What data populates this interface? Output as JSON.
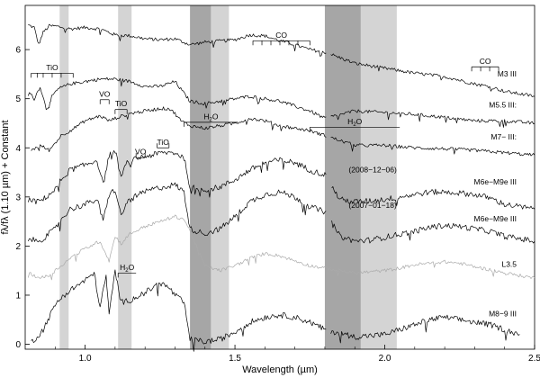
{
  "chart_data": {
    "type": "line",
    "xlabel": "Wavelength (µm)",
    "ylabel": "fλ/fλ (1.10 µm) + Constant",
    "xlim": [
      0.8,
      2.5
    ],
    "ylim": [
      -0.1,
      6.9
    ],
    "x_ticks": [
      {
        "value": 1.0,
        "label": "1.0"
      },
      {
        "value": 1.5,
        "label": "1.5"
      },
      {
        "value": 2.0,
        "label": "2.0"
      },
      {
        "value": 2.5,
        "label": "2.5"
      }
    ],
    "y_ticks": [
      {
        "value": 0,
        "label": "0"
      },
      {
        "value": 1,
        "label": "1"
      },
      {
        "value": 2,
        "label": "2"
      },
      {
        "value": 3,
        "label": "3"
      },
      {
        "value": 4,
        "label": "4"
      },
      {
        "value": 5,
        "label": "5"
      },
      {
        "value": 6,
        "label": "6"
      }
    ],
    "grid": false,
    "shaded_bands": [
      {
        "x0": 0.915,
        "x1": 0.945,
        "shade": "light"
      },
      {
        "x0": 1.11,
        "x1": 1.155,
        "shade": "light"
      },
      {
        "x0": 1.35,
        "x1": 1.42,
        "shade": "dark"
      },
      {
        "x0": 1.42,
        "x1": 1.48,
        "shade": "light"
      },
      {
        "x0": 1.8,
        "x1": 1.92,
        "shade": "dark"
      },
      {
        "x0": 1.92,
        "x1": 2.04,
        "shade": "light"
      }
    ],
    "series": [
      {
        "name": "M3 III",
        "color": "#000000",
        "offset": 5.55,
        "x": [
          0.81,
          0.83,
          0.845,
          0.86,
          0.88,
          0.9,
          0.95,
          1.0,
          1.05,
          1.1,
          1.15,
          1.2,
          1.25,
          1.3,
          1.35,
          1.4,
          1.5,
          1.55,
          1.6,
          1.65,
          1.7,
          1.75,
          1.8,
          1.9,
          2.0,
          2.1,
          2.2,
          2.3,
          2.35,
          2.4,
          2.45,
          2.5
        ],
        "y": [
          6.5,
          6.45,
          6.1,
          6.35,
          6.48,
          6.48,
          6.42,
          6.45,
          6.42,
          6.3,
          6.28,
          6.22,
          6.2,
          6.22,
          6.1,
          6.15,
          6.2,
          6.3,
          6.28,
          6.18,
          6.1,
          6.0,
          5.95,
          5.72,
          5.62,
          5.52,
          5.45,
          5.3,
          5.25,
          5.15,
          5.1,
          5.05
        ]
      },
      {
        "name": "M5.5 III:",
        "color": "#000000",
        "offset": 4.58,
        "x": [
          0.81,
          0.83,
          0.85,
          0.87,
          0.88,
          0.89,
          0.91,
          0.95,
          1.0,
          1.05,
          1.1,
          1.15,
          1.2,
          1.25,
          1.3,
          1.35,
          1.4,
          1.5,
          1.55,
          1.6,
          1.65,
          1.7,
          1.75,
          1.8,
          1.9,
          2.0,
          2.1,
          2.2,
          2.3,
          2.4,
          2.5
        ],
        "y": [
          5.15,
          5.0,
          5.25,
          4.8,
          4.85,
          5.05,
          5.2,
          5.3,
          5.35,
          5.4,
          5.4,
          5.35,
          5.25,
          5.25,
          5.35,
          4.95,
          4.9,
          5.0,
          5.05,
          5.0,
          4.95,
          4.85,
          4.75,
          4.6,
          4.75,
          4.72,
          4.68,
          4.62,
          4.55,
          4.55,
          4.5
        ]
      },
      {
        "name": "M7− III:",
        "color": "#000000",
        "offset": 3.55,
        "x": [
          0.82,
          0.85,
          0.88,
          0.9,
          0.92,
          0.95,
          1.0,
          1.05,
          1.08,
          1.1,
          1.15,
          1.2,
          1.25,
          1.28,
          1.3,
          1.32,
          1.35,
          1.4,
          1.5,
          1.55,
          1.6,
          1.65,
          1.7,
          1.75,
          1.8,
          1.9,
          2.0,
          2.1,
          2.2,
          2.3,
          2.4,
          2.5
        ],
        "y": [
          3.95,
          4.05,
          3.95,
          4.1,
          4.25,
          4.35,
          4.55,
          4.65,
          4.55,
          4.6,
          4.7,
          4.75,
          4.8,
          4.8,
          4.7,
          4.55,
          4.45,
          4.4,
          4.5,
          4.6,
          4.55,
          4.45,
          4.4,
          4.35,
          4.25,
          4.05,
          4.05,
          4.0,
          3.98,
          3.95,
          3.9,
          3.85
        ]
      },
      {
        "name": "M6e−M9e III (2008−12−06)",
        "color": "#000000",
        "offset": 2.48,
        "x": [
          0.81,
          0.84,
          0.86,
          0.88,
          0.9,
          0.92,
          0.95,
          1.0,
          1.04,
          1.06,
          1.08,
          1.1,
          1.12,
          1.14,
          1.18,
          1.22,
          1.26,
          1.3,
          1.33,
          1.35,
          1.4,
          1.45,
          1.5,
          1.55,
          1.6,
          1.65,
          1.7,
          1.75,
          1.8,
          1.85,
          1.9,
          1.95,
          2.0,
          2.1,
          2.15,
          2.2,
          2.25,
          2.3,
          2.35,
          2.4,
          2.5
        ],
        "y": [
          2.95,
          2.9,
          2.95,
          3.05,
          3.15,
          3.35,
          3.55,
          3.65,
          3.75,
          3.25,
          3.85,
          3.95,
          3.4,
          3.7,
          3.8,
          3.85,
          3.9,
          3.9,
          3.8,
          3.2,
          3.15,
          3.2,
          3.35,
          3.55,
          3.7,
          3.75,
          3.7,
          3.55,
          3.45,
          2.95,
          2.9,
          2.92,
          2.95,
          3.05,
          3.1,
          3.1,
          3.08,
          3.05,
          2.98,
          2.85,
          2.75
        ]
      },
      {
        "name": "M6e−M9e III (2007−01−18)",
        "color": "#000000",
        "offset": 1.75,
        "x": [
          0.81,
          0.84,
          0.86,
          0.88,
          0.9,
          0.92,
          0.95,
          1.0,
          1.04,
          1.06,
          1.08,
          1.1,
          1.12,
          1.14,
          1.18,
          1.22,
          1.26,
          1.3,
          1.33,
          1.35,
          1.4,
          1.45,
          1.5,
          1.55,
          1.6,
          1.65,
          1.7,
          1.75,
          1.8,
          1.85,
          1.9,
          1.95,
          2.0,
          2.1,
          2.15,
          2.2,
          2.25,
          2.3,
          2.35,
          2.4,
          2.5
        ],
        "y": [
          2.15,
          2.1,
          2.15,
          2.25,
          2.35,
          2.55,
          2.75,
          2.85,
          2.95,
          2.5,
          3.05,
          3.15,
          2.6,
          2.9,
          3.05,
          3.15,
          3.2,
          3.25,
          3.1,
          2.35,
          2.25,
          2.35,
          2.6,
          2.9,
          3.05,
          3.1,
          3.0,
          2.8,
          2.7,
          2.2,
          2.1,
          2.12,
          2.18,
          2.3,
          2.38,
          2.42,
          2.4,
          2.35,
          2.3,
          2.2,
          2.1
        ]
      },
      {
        "name": "L3.5",
        "color": "#aaaaaa",
        "offset": 1.3,
        "x": [
          0.81,
          0.85,
          0.88,
          0.9,
          0.92,
          0.95,
          1.0,
          1.05,
          1.08,
          1.1,
          1.12,
          1.15,
          1.2,
          1.25,
          1.3,
          1.33,
          1.35,
          1.4,
          1.45,
          1.5,
          1.55,
          1.6,
          1.65,
          1.7,
          1.75,
          1.8,
          1.9,
          2.0,
          2.05,
          2.1,
          2.15,
          2.2,
          2.25,
          2.3,
          2.35,
          2.4,
          2.5
        ],
        "y": [
          1.45,
          1.35,
          1.4,
          1.5,
          1.6,
          1.75,
          1.95,
          2.1,
          1.7,
          2.2,
          2.05,
          2.25,
          2.4,
          2.5,
          2.6,
          2.55,
          2.3,
          1.6,
          1.5,
          1.6,
          1.75,
          1.85,
          1.8,
          1.7,
          1.6,
          1.55,
          1.45,
          1.5,
          1.55,
          1.62,
          1.65,
          1.68,
          1.65,
          1.58,
          1.52,
          1.45,
          1.35
        ]
      },
      {
        "name": "M8−9 III",
        "color": "#000000",
        "offset": 0.0,
        "x": [
          0.82,
          0.84,
          0.86,
          0.88,
          0.9,
          0.92,
          0.95,
          1.0,
          1.03,
          1.05,
          1.07,
          1.08,
          1.1,
          1.12,
          1.15,
          1.2,
          1.25,
          1.28,
          1.3,
          1.33,
          1.35,
          1.4,
          1.45,
          1.5,
          1.55,
          1.6,
          1.65,
          1.7,
          1.75,
          1.8,
          1.9,
          2.0,
          2.1,
          2.15,
          2.2,
          2.25,
          2.3,
          2.35,
          2.4,
          2.45
        ],
        "y": [
          0.05,
          0.15,
          0.3,
          0.55,
          0.8,
          0.95,
          1.1,
          1.3,
          1.45,
          0.75,
          1.4,
          0.6,
          1.5,
          0.85,
          0.9,
          1.05,
          1.25,
          1.15,
          1.0,
          0.85,
          0.1,
          0.05,
          0.1,
          0.25,
          0.45,
          0.55,
          0.6,
          0.55,
          0.45,
          0.3,
          0.15,
          0.2,
          0.4,
          0.5,
          0.55,
          0.5,
          0.45,
          0.4,
          0.3,
          0.2
        ]
      }
    ],
    "series_labels": [
      {
        "text": "M3 III",
        "x": 2.44,
        "y": 5.45
      },
      {
        "text": "M5.5 III:",
        "x": 2.44,
        "y": 4.82
      },
      {
        "text": "M7− III:",
        "x": 2.44,
        "y": 4.17
      },
      {
        "text": "(2008−12−06)",
        "x": 2.04,
        "y": 3.5
      },
      {
        "text": "M6e−M9e III",
        "x": 2.44,
        "y": 3.25
      },
      {
        "text": "(2007−01−18)",
        "x": 2.04,
        "y": 2.78
      },
      {
        "text": "M6e−M9e III",
        "x": 2.44,
        "y": 2.5
      },
      {
        "text": "L3.5",
        "x": 2.44,
        "y": 1.58
      },
      {
        "text": "M8−9 III",
        "x": 2.44,
        "y": 0.57
      }
    ],
    "feature_markers": [
      {
        "text": "CO",
        "y": 6.28,
        "bar_y": 6.18,
        "x0": 1.56,
        "x1": 1.75,
        "ticks": [
          1.56,
          1.59,
          1.62,
          1.65,
          1.68,
          1.71,
          1.75
        ],
        "tick_dir": "down"
      },
      {
        "text": "CO",
        "y": 5.75,
        "bar_y": 5.65,
        "x0": 2.29,
        "x1": 2.38,
        "ticks": [
          2.29,
          2.32,
          2.35,
          2.38
        ],
        "tick_dir": "down"
      },
      {
        "text": "TiO",
        "y": 5.62,
        "bar_y": 5.52,
        "x0": 0.82,
        "x1": 0.96,
        "ticks": [
          0.82,
          0.84,
          0.86,
          0.89,
          0.92,
          0.96
        ],
        "tick_dir": "down"
      },
      {
        "text": "VO",
        "y": 5.08,
        "bar_y": 4.98,
        "x0": 1.05,
        "x1": 1.08,
        "ticks": [
          1.05,
          1.08
        ],
        "tick_dir": "down"
      },
      {
        "text": "TiO",
        "y": 4.88,
        "bar_y": 4.78,
        "x0": 1.1,
        "x1": 1.14,
        "ticks": [
          1.1,
          1.14
        ],
        "tick_dir": "down"
      },
      {
        "text": "H2O",
        "y": 4.62,
        "bar_y": 4.52,
        "x0": 1.33,
        "x1": 1.51,
        "ticks": [
          1.33
        ],
        "tick_dir": "down"
      },
      {
        "text": "H2O",
        "y": 4.52,
        "bar_y": 4.42,
        "x0": 1.75,
        "x1": 2.05,
        "ticks": [
          1.75
        ],
        "tick_dir": "down"
      },
      {
        "text": "VO",
        "y": 3.9,
        "bar_y": 3.8,
        "x0": 1.17,
        "x1": 1.2,
        "ticks": [
          1.17,
          1.2
        ],
        "tick_dir": "up"
      },
      {
        "text": "TiO",
        "y": 4.1,
        "bar_y": 4.0,
        "x0": 1.24,
        "x1": 1.28,
        "ticks": [
          1.24,
          1.28
        ],
        "tick_dir": "up"
      },
      {
        "text": "H2O",
        "y": 1.55,
        "bar_y": 1.45,
        "x0": 1.11,
        "x1": 1.17,
        "ticks": [
          1.11
        ],
        "tick_dir": "down"
      }
    ]
  }
}
